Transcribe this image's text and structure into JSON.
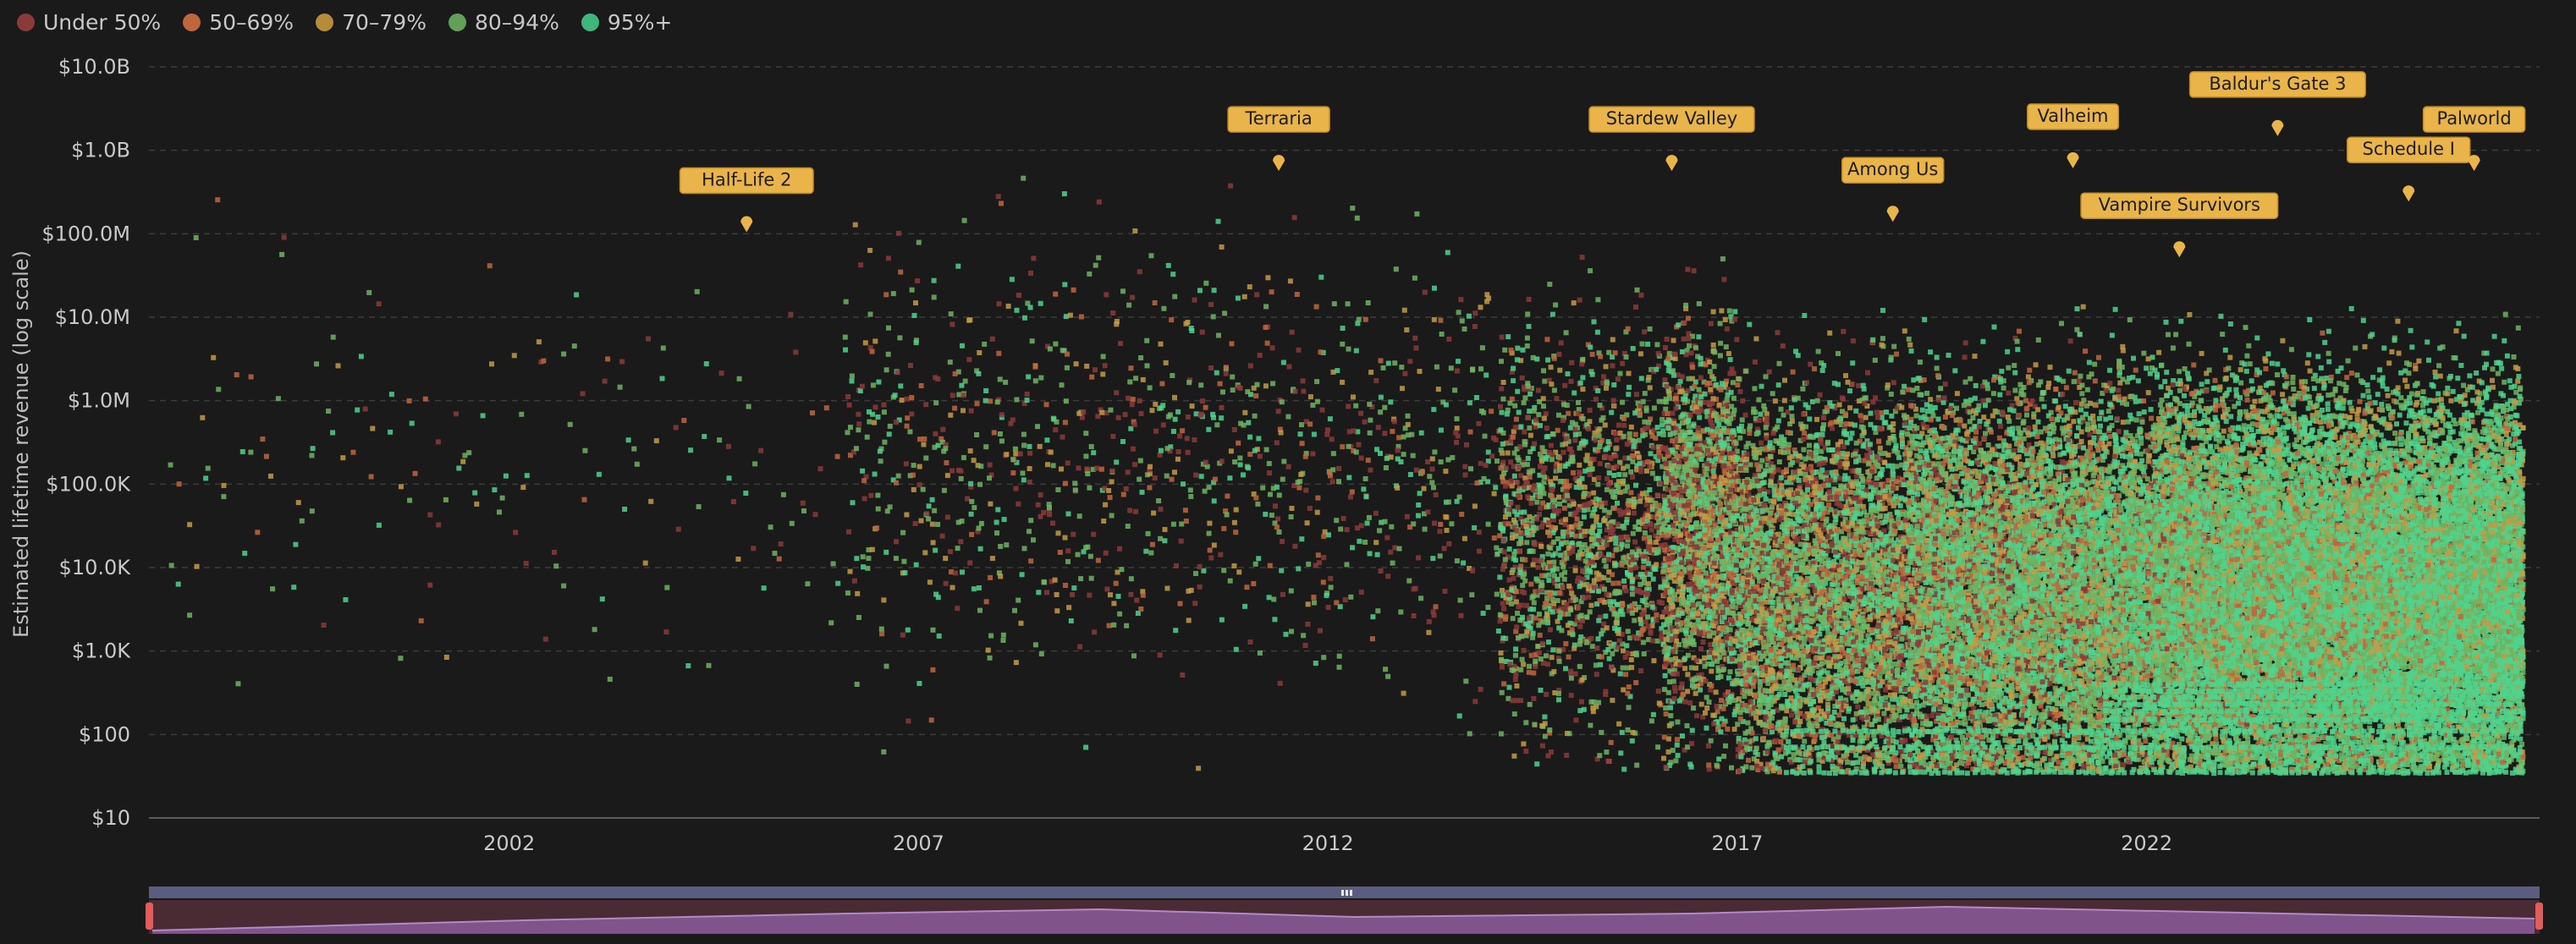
{
  "legend": [
    {
      "label": "Under 50%",
      "color": "#8b3a3a"
    },
    {
      "label": "50–69%",
      "color": "#c0663d"
    },
    {
      "label": "70–79%",
      "color": "#b68b3a"
    },
    {
      "label": "80–94%",
      "color": "#62a05a"
    },
    {
      "label": "95%+",
      "color": "#3fb77a"
    }
  ],
  "chart_data": {
    "type": "scatter",
    "ylabel": "Estimated lifetime revenue (log scale)",
    "yscale": "log",
    "ylim": [
      10,
      10000000000
    ],
    "yticks": [
      {
        "v": 10,
        "label": "$10"
      },
      {
        "v": 100,
        "label": "$100"
      },
      {
        "v": 1000,
        "label": "$1.0K"
      },
      {
        "v": 10000,
        "label": "$10.0K"
      },
      {
        "v": 100000,
        "label": "$100.0K"
      },
      {
        "v": 1000000,
        "label": "$1.0M"
      },
      {
        "v": 10000000,
        "label": "$10.0M"
      },
      {
        "v": 100000000,
        "label": "$100.0M"
      },
      {
        "v": 1000000000,
        "label": "$1.0B"
      },
      {
        "v": 10000000000,
        "label": "$10.0B"
      }
    ],
    "xlim": [
      1997.6,
      2026.8
    ],
    "xticks": [
      "2002",
      "2007",
      "2012",
      "2017",
      "2022"
    ],
    "annotations": [
      {
        "label": "Half-Life 2",
        "x": 2004.9,
        "y": 120000000
      },
      {
        "label": "Terraria",
        "x": 2011.4,
        "y": 650000000
      },
      {
        "label": "Stardew Valley",
        "x": 2016.2,
        "y": 650000000
      },
      {
        "label": "Among Us",
        "x": 2018.9,
        "y": 160000000
      },
      {
        "label": "Valheim",
        "x": 2021.1,
        "y": 700000000
      },
      {
        "label": "Vampire Survivors",
        "x": 2022.4,
        "y": 60000000
      },
      {
        "label": "Baldur's Gate 3",
        "x": 2023.6,
        "y": 1700000000
      },
      {
        "label": "Schedule I",
        "x": 2025.2,
        "y": 280000000
      },
      {
        "label": "Palworld",
        "x": 2026.0,
        "y": 650000000
      }
    ],
    "grid": true,
    "legend_position": "top-left"
  }
}
